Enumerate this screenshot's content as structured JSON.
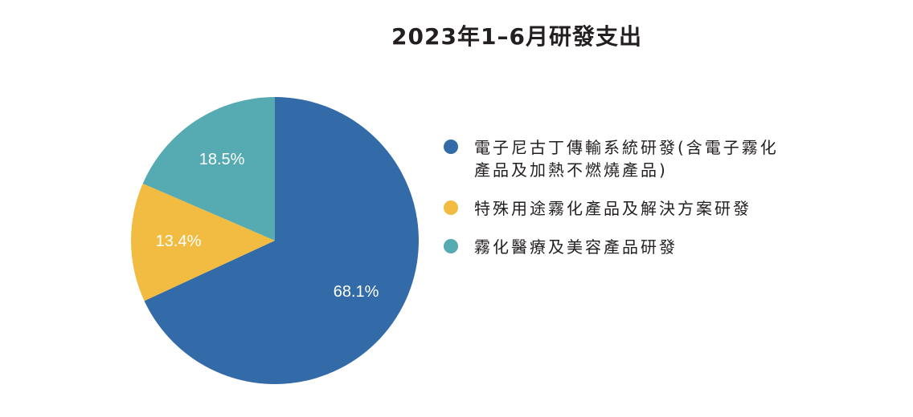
{
  "chart_data": {
    "type": "pie",
    "title": "2023年1–6月研發支出",
    "legend_position": "right",
    "slices": [
      {
        "label": "電子尼古丁傳輸系統研發(含電子霧化產品及加熱不燃燒產品)",
        "value": 68.1,
        "display": "68.1%",
        "color": "#336aa8"
      },
      {
        "label": "特殊用途霧化產品及解決方案研發",
        "value": 13.4,
        "display": "13.4%",
        "color": "#f2bb41"
      },
      {
        "label": "霧化醫療及美容產品研發",
        "value": 18.5,
        "display": "18.5%",
        "color": "#56aab1"
      }
    ]
  }
}
